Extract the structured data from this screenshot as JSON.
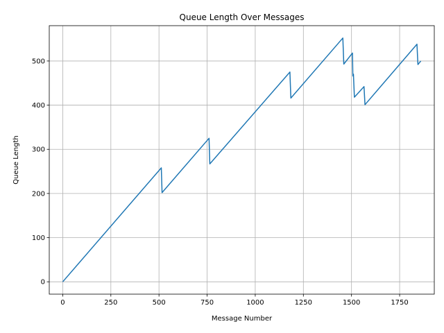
{
  "chart_data": {
    "type": "line",
    "title": "Queue Length Over Messages",
    "xlabel": "Message Number",
    "ylabel": "Queue Length",
    "xlim": [
      -70,
      1930
    ],
    "ylim": [
      -28,
      580
    ],
    "xticks": [
      0,
      250,
      500,
      750,
      1000,
      1250,
      1500,
      1750
    ],
    "yticks": [
      0,
      100,
      200,
      300,
      400,
      500
    ],
    "grid": true,
    "series": [
      {
        "name": "",
        "color": "#1f77b4",
        "x": [
          0,
          512,
          516,
          760,
          764,
          1180,
          1185,
          1455,
          1460,
          1505,
          1507,
          1510,
          1515,
          1565,
          1570,
          1840,
          1845,
          1860
        ],
        "y": [
          0,
          258,
          202,
          325,
          267,
          475,
          416,
          552,
          493,
          518,
          466,
          470,
          418,
          442,
          401,
          538,
          492,
          500
        ]
      }
    ]
  }
}
